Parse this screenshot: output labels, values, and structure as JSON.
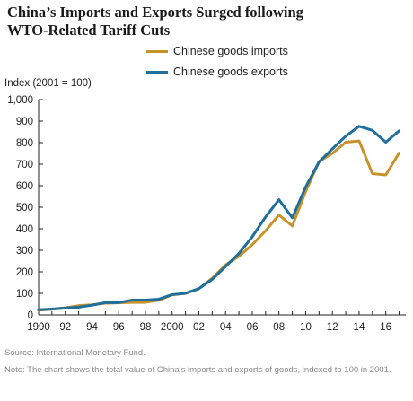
{
  "title_lines": [
    "China’s Imports and Exports Surged following",
    "WTO-Related Tariff Cuts"
  ],
  "ylabel": "Index  (2001 = 100)",
  "source": "Source: International Monetary Fund.",
  "note": "Note: The chart shows the total value of China’s imports and exports of goods, indexed to 100 in 2001.",
  "legend": [
    {
      "label": "Chinese goods imports",
      "color": "#C8922A"
    },
    {
      "label": "Chinese goods exports",
      "color": "#1F6E9C"
    }
  ],
  "chart_data": {
    "type": "line",
    "title": "China’s Imports and Exports Surged following WTO-Related Tariff Cuts",
    "xlabel": "",
    "ylabel": "Index  (2001 = 100)",
    "x": [
      1990,
      1991,
      1992,
      1993,
      1994,
      1995,
      1996,
      1997,
      1998,
      1999,
      2000,
      2001,
      2002,
      2003,
      2004,
      2005,
      2006,
      2007,
      2008,
      2009,
      2010,
      2011,
      2012,
      2013,
      2014,
      2015,
      2016,
      2017
    ],
    "xlim": [
      1990,
      2017.5
    ],
    "ylim": [
      0,
      1000
    ],
    "xticks": [
      1990,
      1992,
      1994,
      1996,
      1998,
      2000,
      2002,
      2004,
      2006,
      2008,
      2010,
      2012,
      2014,
      2016
    ],
    "xtick_labels": [
      "1990",
      "92",
      "94",
      "96",
      "98",
      "2000",
      "02",
      "04",
      "06",
      "08",
      "10",
      "12",
      "14",
      "16"
    ],
    "yticks": [
      0,
      100,
      200,
      300,
      400,
      500,
      600,
      700,
      800,
      900,
      1000
    ],
    "ytick_labels": [
      "0",
      "100",
      "200",
      "300",
      "400",
      "500",
      "600",
      "700",
      "800",
      "900",
      "1,000"
    ],
    "grid": false,
    "legend_position": "top",
    "series": [
      {
        "name": "Chinese goods imports",
        "color": "#C8922A",
        "values": [
          22,
          26,
          33,
          43,
          47,
          54,
          56,
          58,
          58,
          68,
          93,
          100,
          121,
          170,
          232,
          272,
          326,
          391,
          464,
          413,
          573,
          712,
          750,
          802,
          808,
          656,
          650,
          752
        ]
      },
      {
        "name": "Chinese goods exports",
        "color": "#1F6E9C",
        "values": [
          24,
          27,
          32,
          36,
          45,
          57,
          57,
          69,
          69,
          73,
          94,
          100,
          122,
          165,
          225,
          285,
          363,
          455,
          535,
          451,
          594,
          710,
          771,
          830,
          876,
          857,
          802,
          855
        ]
      }
    ]
  }
}
